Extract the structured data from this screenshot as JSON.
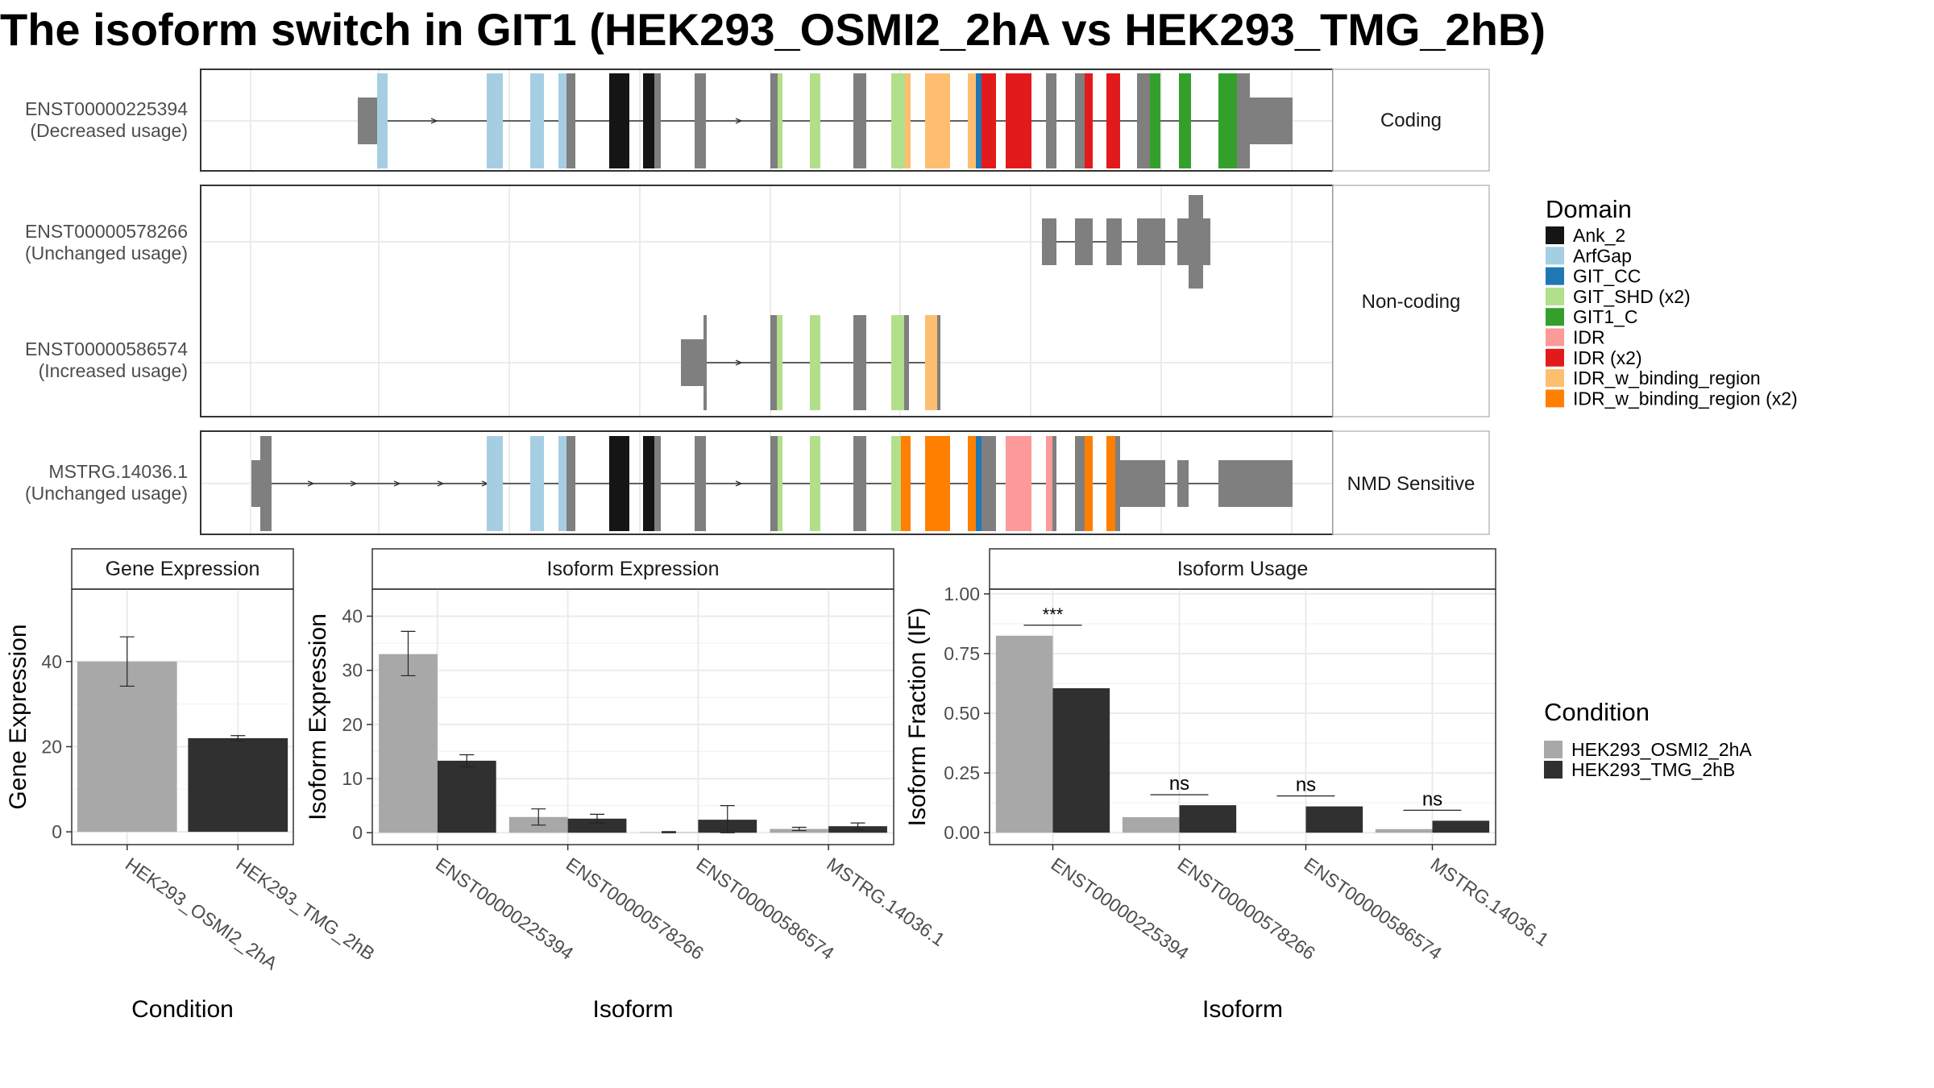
{
  "title": "The isoform switch in GIT1 (HEK293_OSMI2_2hA vs HEK293_TMG_2hB)",
  "colors": {
    "Ank_2": "#151515",
    "ArfGap": "#a6cee3",
    "GIT_CC": "#1f78b4",
    "GIT_SHD (x2)": "#b2df8a",
    "GIT1_C": "#33a02c",
    "IDR": "#fb9a99",
    "IDR (x2)": "#e31a1c",
    "IDR_w_binding_region": "#fdbf6f",
    "IDR_w_binding_region (x2)": "#ff7f00",
    "exon": "#7f7f7f",
    "cond_a": "#a8a8a8",
    "cond_b": "#303030"
  },
  "transcripts": {
    "strips": [
      "Coding",
      "Non-coding",
      "NMD Sensitive"
    ],
    "rows": [
      {
        "name": "ENST00000225394",
        "usage": "(Decreased usage)"
      },
      {
        "name": "ENST00000578266",
        "usage": "(Unchanged usage)"
      },
      {
        "name": "ENST00000586574",
        "usage": "(Increased usage)"
      },
      {
        "name": "MSTRG.14036.1",
        "usage": "(Unchanged usage)"
      }
    ]
  },
  "domain_legend": {
    "title": "Domain",
    "items": [
      "Ank_2",
      "ArfGap",
      "GIT_CC",
      "GIT_SHD (x2)",
      "GIT1_C",
      "IDR",
      "IDR (x2)",
      "IDR_w_binding_region",
      "IDR_w_binding_region (x2)"
    ]
  },
  "condition_legend": {
    "title": "Condition",
    "items": [
      "HEK293_OSMI2_2hA",
      "HEK293_TMG_2hB"
    ]
  },
  "chart_data": [
    {
      "type": "bar",
      "title": "Gene Expression",
      "xlabel": "Condition",
      "ylabel": "Gene Expression",
      "categories": [
        "HEK293_OSMI2_2hA",
        "HEK293_TMG_2hB"
      ],
      "values": [
        40,
        22
      ],
      "errors": [
        [
          34.2,
          45.8
        ],
        [
          21.4,
          22.6
        ]
      ],
      "ylim": [
        -3,
        57
      ],
      "yticks": [
        0,
        20,
        40
      ]
    },
    {
      "type": "bar",
      "title": "Isoform Expression",
      "xlabel": "Isoform",
      "ylabel": "Isoform Expression",
      "categories": [
        "ENST00000225394",
        "ENST00000578266",
        "ENST00000586574",
        "MSTRG.14036.1"
      ],
      "series": [
        {
          "name": "HEK293_OSMI2_2hA",
          "values": [
            33,
            2.9,
            0.1,
            0.7
          ],
          "errors": [
            [
              29,
              37.2
            ],
            [
              1.4,
              4.4
            ],
            [
              0,
              0.2
            ],
            [
              0.4,
              1
            ]
          ]
        },
        {
          "name": "HEK293_TMG_2hB",
          "values": [
            13.3,
            2.6,
            2.4,
            1.2
          ],
          "errors": [
            [
              12.2,
              14.4
            ],
            [
              1.8,
              3.4
            ],
            [
              0,
              5
            ],
            [
              0.6,
              1.8
            ]
          ]
        }
      ],
      "ylim": [
        -2.2,
        45
      ],
      "yticks": [
        0,
        10,
        20,
        30,
        40
      ]
    },
    {
      "type": "bar",
      "title": "Isoform Usage",
      "xlabel": "Isoform",
      "ylabel": "Isoform Fraction (IF)",
      "categories": [
        "ENST00000225394",
        "ENST00000578266",
        "ENST00000586574",
        "MSTRG.14036.1"
      ],
      "series": [
        {
          "name": "HEK293_OSMI2_2hA",
          "values": [
            0.825,
            0.065,
            0,
            0.015
          ]
        },
        {
          "name": "HEK293_TMG_2hB",
          "values": [
            0.605,
            0.115,
            0.11,
            0.05
          ]
        }
      ],
      "significance": [
        "***",
        "ns",
        "ns",
        "ns"
      ],
      "ylim": [
        -0.05,
        1.02
      ],
      "yticks": [
        "0.00",
        "0.25",
        "0.50",
        "0.75",
        "1.00"
      ]
    }
  ]
}
